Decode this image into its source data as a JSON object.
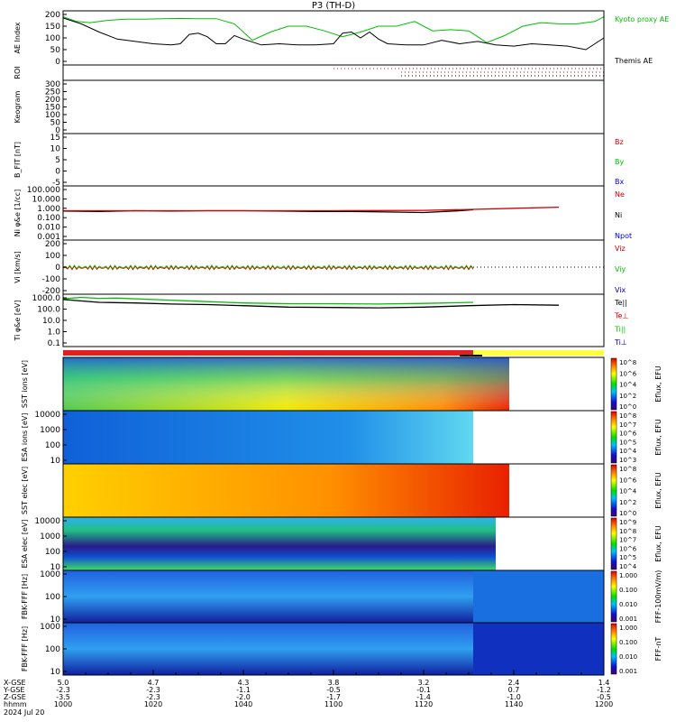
{
  "chart_data": {
    "type": "multi-panel time series and spectrograms",
    "title": "P3 (TH-D)",
    "date": "2024 Jul 20",
    "time_axis": {
      "start": "1000",
      "end": "1200",
      "rows": [
        {
          "label": "X-GSE",
          "values": [
            "5.0",
            "4.7",
            "4.3",
            "3.8",
            "3.2",
            "2.4",
            "1.4"
          ]
        },
        {
          "label": "Y-GSE",
          "values": [
            "-2.3",
            "-2.3",
            "-1.1",
            "-0.5",
            "-0.1",
            "0.7",
            "-1.2"
          ]
        },
        {
          "label": "Z-GSE",
          "values": [
            "-3.5",
            "-2.3",
            "-2.0",
            "-1.7",
            "-1.4",
            "-1.0",
            "-0.5"
          ]
        },
        {
          "label": "hhmm",
          "values": [
            "1000",
            "1020",
            "1040",
            "1100",
            "1120",
            "1140",
            "1200"
          ]
        }
      ]
    },
    "panels": [
      {
        "id": "ae",
        "ylabel": "AE Index",
        "ylim": [
          0,
          200
        ],
        "ticks": [
          "200",
          "150",
          "100",
          "50",
          "0"
        ],
        "legend": [
          {
            "name": "Kyoto proxy AE",
            "color": "#00c000"
          },
          {
            "name": "Themis AE",
            "color": "#000000"
          }
        ],
        "series": [
          {
            "name": "Kyoto proxy AE",
            "color": "#00c000",
            "x": [
              0,
              3,
              6,
              10,
              14,
              18,
              22,
              26,
              30,
              34,
              38,
              42,
              46,
              50,
              54,
              58,
              62,
              66,
              70,
              74,
              78,
              82,
              86,
              90,
              94,
              98,
              102,
              106,
              110,
              114,
              118,
              120
            ],
            "values": [
              190,
              170,
              165,
              175,
              180,
              180,
              182,
              183,
              182,
              182,
              160,
              90,
              125,
              150,
              150,
              130,
              105,
              125,
              150,
              150,
              170,
              130,
              135,
              130,
              80,
              110,
              150,
              165,
              160,
              160,
              170,
              190
            ]
          },
          {
            "name": "Themis AE",
            "color": "#000000",
            "x": [
              0,
              4,
              8,
              12,
              16,
              20,
              24,
              26,
              28,
              30,
              32,
              34,
              36,
              38,
              40,
              44,
              48,
              52,
              56,
              60,
              62,
              64,
              66,
              68,
              70,
              72,
              76,
              80,
              84,
              88,
              92,
              96,
              100,
              104,
              108,
              112,
              116,
              120
            ],
            "values": [
              185,
              160,
              125,
              95,
              85,
              75,
              70,
              75,
              115,
              120,
              105,
              75,
              75,
              110,
              95,
              70,
              75,
              70,
              70,
              75,
              120,
              125,
              100,
              125,
              95,
              75,
              70,
              70,
              90,
              75,
              85,
              70,
              65,
              75,
              70,
              65,
              50,
              100
            ]
          }
        ]
      },
      {
        "id": "roi",
        "ylabel": "ROI"
      },
      {
        "id": "keogram",
        "ylabel": "Keogram",
        "ticks": [
          "300",
          "250",
          "200",
          "150",
          "100",
          "50",
          "0"
        ]
      },
      {
        "id": "bfit",
        "ylabel": "B_FIT [nT]",
        "ticks": [
          "15",
          "10",
          "5",
          "0",
          "-5"
        ],
        "legend": [
          {
            "name": "Bz",
            "color": "#d00000"
          },
          {
            "name": "By",
            "color": "#00c000"
          },
          {
            "name": "Bx",
            "color": "#0000d0"
          }
        ]
      },
      {
        "id": "ni",
        "ylabel": "Ni φ&e [1/cc]",
        "scale": "log",
        "ticks": [
          "100.000",
          "10.000",
          "1.000",
          "0.100",
          "0.010",
          "0.001"
        ],
        "legend": [
          {
            "name": "Ne",
            "color": "#d00000"
          },
          {
            "name": "Ni",
            "color": "#000000"
          },
          {
            "name": "Npot",
            "color": "#0000d0"
          }
        ],
        "series": [
          {
            "name": "Ni",
            "color": "#000000",
            "x": [
              0,
              8,
              16,
              24,
              32,
              40,
              48,
              56,
              64,
              72,
              80,
              88,
              91
            ],
            "values": [
              0.5,
              0.45,
              0.55,
              0.5,
              0.55,
              0.55,
              0.5,
              0.45,
              0.45,
              0.4,
              0.35,
              0.55,
              0.7
            ]
          },
          {
            "name": "Ne",
            "color": "#d00000",
            "x": [
              0,
              20,
              40,
              60,
              80,
              90,
              100,
              110
            ],
            "values": [
              0.55,
              0.55,
              0.55,
              0.55,
              0.6,
              0.75,
              1.0,
              1.3
            ]
          }
        ]
      },
      {
        "id": "vi",
        "ylabel": "Vi [km/s]",
        "ticks": [
          "200",
          "100",
          "0",
          "-100",
          "-200"
        ],
        "legend": [
          {
            "name": "Viz",
            "color": "#d00000"
          },
          {
            "name": "Viy",
            "color": "#00c000"
          },
          {
            "name": "Vix",
            "color": "#0000d0"
          }
        ]
      },
      {
        "id": "ti",
        "ylabel": "Ti φ&e [eV]",
        "scale": "log",
        "ticks": [
          "1000.0",
          "100.0",
          "10.0",
          "1.0",
          "0.1"
        ],
        "legend": [
          {
            "name": "Te||",
            "color": "#000000"
          },
          {
            "name": "Te⊥",
            "color": "#d00000"
          },
          {
            "name": "Ti||",
            "color": "#00c000"
          },
          {
            "name": "Ti⊥",
            "color": "#0000d0"
          }
        ],
        "series": [
          {
            "name": "Ti||",
            "color": "#00c000",
            "x": [
              0,
              4,
              8,
              12,
              20,
              30,
              40,
              50,
              60,
              70,
              80,
              91
            ],
            "values": [
              800,
              1100,
              900,
              950,
              700,
              500,
              350,
              300,
              300,
              280,
              320,
              400
            ]
          },
          {
            "name": "Te||",
            "color": "#000000",
            "x": [
              0,
              8,
              16,
              24,
              32,
              40,
              50,
              60,
              70,
              80,
              90,
              100,
              110
            ],
            "values": [
              700,
              400,
              350,
              280,
              250,
              200,
              150,
              140,
              130,
              150,
              200,
              250,
              220
            ]
          }
        ]
      },
      {
        "id": "sst_i",
        "ylabel": "SST ions [eV]",
        "cbar": "Eflux, EFU",
        "cbar_ticks": [
          "10^8",
          "10^6",
          "10^4",
          "10^2",
          "10^0"
        ]
      },
      {
        "id": "esa_i",
        "ylabel": "ESA ions [eV]",
        "ticks": [
          "10000",
          "1000",
          "100",
          "10"
        ],
        "cbar": "Eflux, EFU",
        "cbar_ticks": [
          "10^8",
          "10^7",
          "10^6",
          "10^5",
          "10^4",
          "10^3"
        ]
      },
      {
        "id": "sst_e",
        "ylabel": "SST elec [eV]",
        "cbar": "Eflux, EFU",
        "cbar_ticks": [
          "10^8",
          "10^6",
          "10^4",
          "10^2",
          "10^0"
        ]
      },
      {
        "id": "esa_e",
        "ylabel": "ESA elec [eV]",
        "ticks": [
          "10000",
          "1000",
          "100",
          "10"
        ],
        "cbar": "Eflux, EFU",
        "cbar_ticks": [
          "10^9",
          "10^8",
          "10^7",
          "10^6",
          "10^5",
          "10^4"
        ]
      },
      {
        "id": "fbk_e",
        "ylabel": "FBK-FFF [Hz]",
        "ticks": [
          "1000",
          "100",
          "10"
        ],
        "cbar": "FFF-100mV/m)",
        "cbar_ticks": [
          "1.000",
          "0.100",
          "0.010",
          "0.001"
        ]
      },
      {
        "id": "fbk_b",
        "ylabel": "FBK-FFF [Hz]",
        "ticks": [
          "1000",
          "100",
          "10"
        ],
        "cbar": "FFF-nT",
        "cbar_ticks": [
          "1.000",
          "0.100",
          "0.010",
          "0.001"
        ]
      }
    ]
  }
}
